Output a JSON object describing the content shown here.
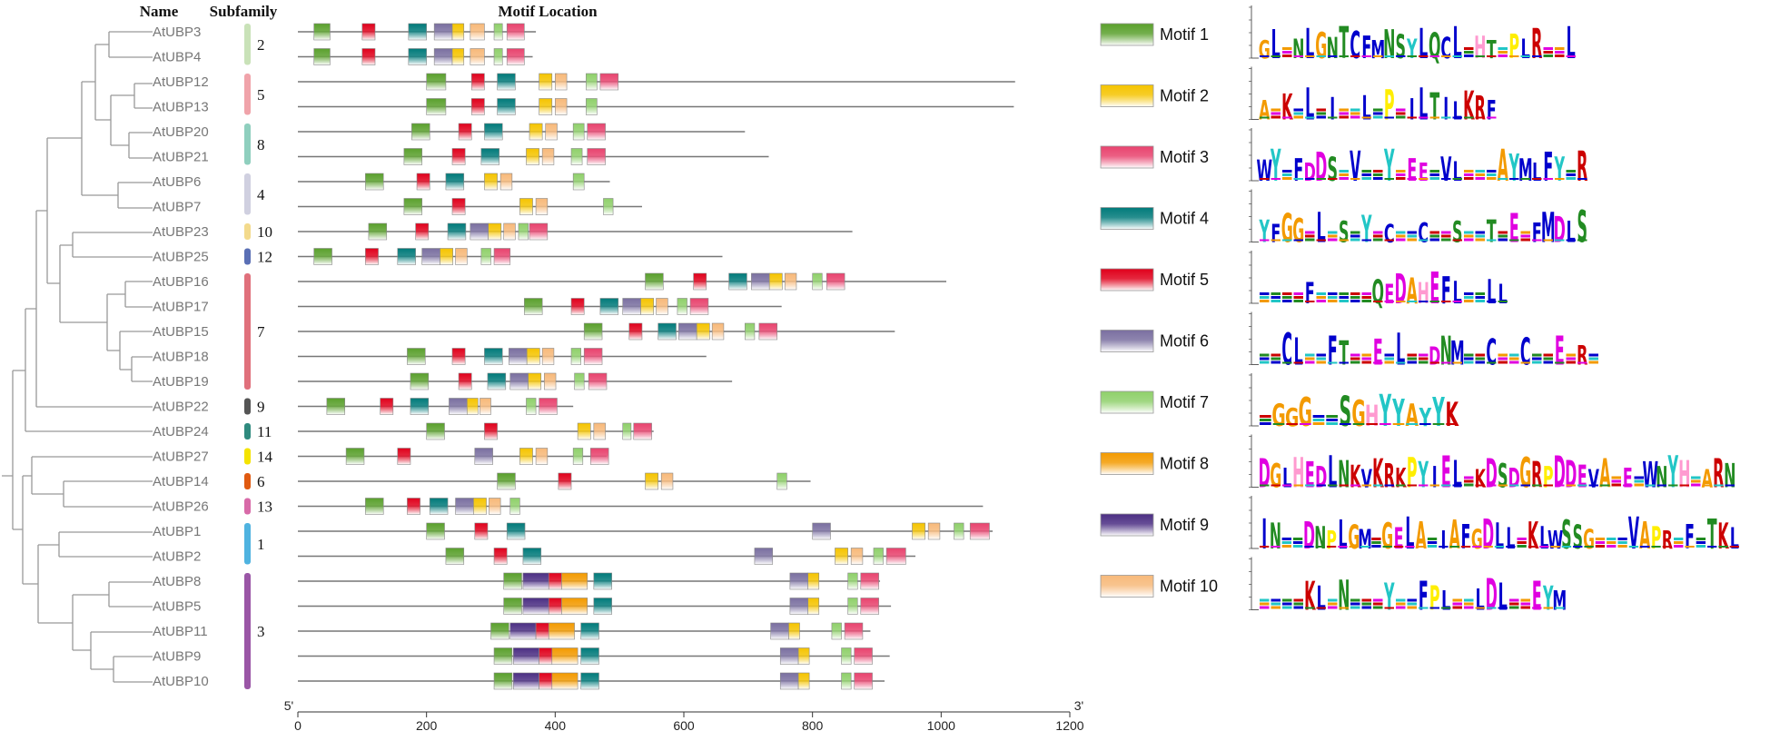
{
  "headers": {
    "name": "Name",
    "subfamily": "Subfamily",
    "motif_location": "Motif Location"
  },
  "axis": {
    "start": 0,
    "end": 1200,
    "ticks": [
      0,
      200,
      400,
      600,
      800,
      1000,
      1200
    ],
    "five_prime": "5'",
    "three_prime": "3'"
  },
  "motif_colors": {
    "1": [
      "#5aa02c",
      "#ffffff"
    ],
    "2": [
      "#f5c400",
      "#ffffff"
    ],
    "3": [
      "#e8436e",
      "#ffffff"
    ],
    "4": [
      "#007a7a",
      "#ffffff"
    ],
    "5": [
      "#e0001b",
      "#ffffff"
    ],
    "6": [
      "#7a6fa0",
      "#ffffff"
    ],
    "7": [
      "#8fd06a",
      "#ffffff"
    ],
    "8": [
      "#f39a00",
      "#ffffff"
    ],
    "9": [
      "#4b2e83",
      "#ffffff"
    ],
    "10": [
      "#f7b97a",
      "#ffffff"
    ]
  },
  "genes": [
    {
      "name": "AtUBP3",
      "length": 370,
      "motifs": [
        [
          1,
          25,
          50
        ],
        [
          5,
          100,
          120
        ],
        [
          4,
          172,
          200
        ],
        [
          6,
          212,
          240
        ],
        [
          2,
          240,
          258
        ],
        [
          10,
          268,
          290
        ],
        [
          7,
          305,
          318
        ],
        [
          3,
          325,
          352
        ]
      ]
    },
    {
      "name": "AtUBP4",
      "length": 365,
      "motifs": [
        [
          1,
          25,
          50
        ],
        [
          5,
          100,
          120
        ],
        [
          4,
          172,
          200
        ],
        [
          6,
          212,
          240
        ],
        [
          2,
          240,
          258
        ],
        [
          10,
          268,
          290
        ],
        [
          7,
          305,
          318
        ],
        [
          3,
          325,
          352
        ]
      ]
    },
    {
      "name": "AtUBP12",
      "length": 1115,
      "motifs": [
        [
          1,
          200,
          230
        ],
        [
          5,
          270,
          290
        ],
        [
          4,
          310,
          338
        ],
        [
          2,
          375,
          395
        ],
        [
          10,
          400,
          418
        ],
        [
          7,
          448,
          465
        ],
        [
          3,
          470,
          498
        ]
      ]
    },
    {
      "name": "AtUBP13",
      "length": 1113,
      "motifs": [
        [
          1,
          200,
          230
        ],
        [
          5,
          270,
          290
        ],
        [
          4,
          310,
          338
        ],
        [
          2,
          375,
          395
        ],
        [
          10,
          400,
          418
        ],
        [
          7,
          448,
          465
        ]
      ]
    },
    {
      "name": "AtUBP20",
      "length": 695,
      "motifs": [
        [
          1,
          177,
          205
        ],
        [
          5,
          250,
          270
        ],
        [
          4,
          290,
          318
        ],
        [
          2,
          360,
          380
        ],
        [
          10,
          385,
          403
        ],
        [
          7,
          428,
          445
        ],
        [
          3,
          450,
          478
        ]
      ]
    },
    {
      "name": "AtUBP21",
      "length": 732,
      "motifs": [
        [
          1,
          165,
          193
        ],
        [
          5,
          240,
          260
        ],
        [
          4,
          285,
          313
        ],
        [
          2,
          355,
          375
        ],
        [
          10,
          380,
          398
        ],
        [
          7,
          425,
          442
        ],
        [
          3,
          450,
          478
        ]
      ]
    },
    {
      "name": "AtUBP6",
      "length": 485,
      "motifs": [
        [
          1,
          105,
          133
        ],
        [
          5,
          185,
          205
        ],
        [
          4,
          230,
          258
        ],
        [
          2,
          290,
          310
        ],
        [
          10,
          315,
          333
        ],
        [
          7,
          428,
          445
        ]
      ]
    },
    {
      "name": "AtUBP7",
      "length": 535,
      "motifs": [
        [
          1,
          165,
          193
        ],
        [
          5,
          240,
          260
        ],
        [
          2,
          345,
          365
        ],
        [
          10,
          370,
          388
        ],
        [
          7,
          475,
          490
        ]
      ]
    },
    {
      "name": "AtUBP23",
      "length": 862,
      "motifs": [
        [
          1,
          110,
          138
        ],
        [
          5,
          183,
          203
        ],
        [
          4,
          233,
          261
        ],
        [
          6,
          268,
          296
        ],
        [
          2,
          296,
          316
        ],
        [
          10,
          320,
          338
        ],
        [
          7,
          343,
          358
        ],
        [
          3,
          360,
          388
        ]
      ]
    },
    {
      "name": "AtUBP25",
      "length": 660,
      "motifs": [
        [
          1,
          25,
          53
        ],
        [
          5,
          105,
          125
        ],
        [
          4,
          155,
          183
        ],
        [
          6,
          193,
          221
        ],
        [
          2,
          221,
          241
        ],
        [
          10,
          245,
          263
        ],
        [
          7,
          285,
          300
        ],
        [
          3,
          305,
          330
        ]
      ]
    },
    {
      "name": "AtUBP16",
      "length": 1008,
      "motifs": [
        [
          1,
          540,
          568
        ],
        [
          5,
          615,
          635
        ],
        [
          4,
          670,
          698
        ],
        [
          6,
          705,
          733
        ],
        [
          2,
          733,
          753
        ],
        [
          10,
          757,
          775
        ],
        [
          7,
          800,
          815
        ],
        [
          3,
          822,
          850
        ]
      ]
    },
    {
      "name": "AtUBP17",
      "length": 752,
      "motifs": [
        [
          1,
          352,
          380
        ],
        [
          5,
          425,
          445
        ],
        [
          4,
          470,
          498
        ],
        [
          6,
          505,
          533
        ],
        [
          2,
          533,
          553
        ],
        [
          10,
          557,
          575
        ],
        [
          7,
          590,
          605
        ],
        [
          3,
          610,
          638
        ]
      ]
    },
    {
      "name": "AtUBP15",
      "length": 928,
      "motifs": [
        [
          1,
          445,
          473
        ],
        [
          5,
          515,
          535
        ],
        [
          4,
          560,
          588
        ],
        [
          6,
          592,
          620
        ],
        [
          2,
          620,
          640
        ],
        [
          10,
          644,
          662
        ],
        [
          7,
          695,
          710
        ],
        [
          3,
          717,
          745
        ]
      ]
    },
    {
      "name": "AtUBP18",
      "length": 635,
      "motifs": [
        [
          1,
          170,
          198
        ],
        [
          5,
          240,
          260
        ],
        [
          4,
          290,
          318
        ],
        [
          6,
          328,
          356
        ],
        [
          2,
          356,
          376
        ],
        [
          10,
          380,
          398
        ],
        [
          7,
          425,
          440
        ],
        [
          3,
          445,
          473
        ]
      ]
    },
    {
      "name": "AtUBP19",
      "length": 675,
      "motifs": [
        [
          1,
          175,
          203
        ],
        [
          5,
          250,
          270
        ],
        [
          4,
          295,
          323
        ],
        [
          6,
          330,
          358
        ],
        [
          2,
          358,
          378
        ],
        [
          10,
          383,
          401
        ],
        [
          7,
          430,
          445
        ],
        [
          3,
          452,
          480
        ]
      ]
    },
    {
      "name": "AtUBP22",
      "length": 428,
      "motifs": [
        [
          1,
          45,
          73
        ],
        [
          5,
          128,
          148
        ],
        [
          4,
          175,
          203
        ],
        [
          6,
          235,
          263
        ],
        [
          2,
          263,
          280
        ],
        [
          10,
          283,
          300
        ],
        [
          7,
          355,
          370
        ],
        [
          3,
          375,
          403
        ]
      ]
    },
    {
      "name": "AtUBP24",
      "length": 553,
      "motifs": [
        [
          1,
          200,
          228
        ],
        [
          5,
          290,
          310
        ],
        [
          2,
          435,
          455
        ],
        [
          10,
          460,
          478
        ],
        [
          7,
          505,
          518
        ],
        [
          3,
          522,
          550
        ]
      ]
    },
    {
      "name": "AtUBP27",
      "length": 480,
      "motifs": [
        [
          1,
          75,
          103
        ],
        [
          5,
          155,
          175
        ],
        [
          6,
          275,
          303
        ],
        [
          2,
          345,
          365
        ],
        [
          10,
          370,
          388
        ],
        [
          7,
          428,
          443
        ],
        [
          3,
          455,
          483
        ]
      ]
    },
    {
      "name": "AtUBP14",
      "length": 797,
      "motifs": [
        [
          1,
          310,
          338
        ],
        [
          5,
          405,
          425
        ],
        [
          2,
          540,
          560
        ],
        [
          10,
          565,
          583
        ],
        [
          7,
          745,
          760
        ]
      ]
    },
    {
      "name": "AtUBP26",
      "length": 1065,
      "motifs": [
        [
          1,
          105,
          133
        ],
        [
          5,
          170,
          190
        ],
        [
          4,
          205,
          233
        ],
        [
          6,
          245,
          273
        ],
        [
          2,
          273,
          293
        ],
        [
          10,
          297,
          315
        ],
        [
          7,
          330,
          345
        ]
      ]
    },
    {
      "name": "AtUBP1",
      "length": 1080,
      "motifs": [
        [
          1,
          200,
          228
        ],
        [
          5,
          275,
          295
        ],
        [
          4,
          325,
          353
        ],
        [
          6,
          800,
          828
        ],
        [
          2,
          955,
          975
        ],
        [
          10,
          980,
          998
        ],
        [
          7,
          1020,
          1035
        ],
        [
          3,
          1045,
          1075
        ]
      ]
    },
    {
      "name": "AtUBP2",
      "length": 960,
      "motifs": [
        [
          1,
          230,
          258
        ],
        [
          5,
          305,
          325
        ],
        [
          4,
          350,
          378
        ],
        [
          6,
          710,
          738
        ],
        [
          2,
          835,
          855
        ],
        [
          10,
          860,
          878
        ],
        [
          7,
          895,
          910
        ],
        [
          3,
          915,
          945
        ]
      ]
    },
    {
      "name": "AtUBP8",
      "length": 905,
      "motifs": [
        [
          1,
          320,
          348
        ],
        [
          9,
          350,
          390
        ],
        [
          5,
          390,
          410
        ],
        [
          8,
          410,
          450
        ],
        [
          4,
          460,
          488
        ],
        [
          6,
          765,
          793
        ],
        [
          2,
          793,
          810
        ],
        [
          7,
          855,
          870
        ],
        [
          3,
          875,
          903
        ]
      ]
    },
    {
      "name": "AtUBP5",
      "length": 922,
      "motifs": [
        [
          1,
          320,
          348
        ],
        [
          9,
          350,
          390
        ],
        [
          5,
          390,
          410
        ],
        [
          8,
          410,
          450
        ],
        [
          4,
          460,
          488
        ],
        [
          6,
          765,
          793
        ],
        [
          2,
          793,
          810
        ],
        [
          7,
          855,
          870
        ],
        [
          3,
          875,
          903
        ]
      ]
    },
    {
      "name": "AtUBP11",
      "length": 890,
      "motifs": [
        [
          1,
          300,
          328
        ],
        [
          9,
          330,
          370
        ],
        [
          5,
          370,
          390
        ],
        [
          8,
          390,
          430
        ],
        [
          4,
          440,
          468
        ],
        [
          6,
          735,
          763
        ],
        [
          2,
          763,
          780
        ],
        [
          7,
          830,
          845
        ],
        [
          3,
          850,
          878
        ]
      ]
    },
    {
      "name": "AtUBP9",
      "length": 920,
      "motifs": [
        [
          1,
          305,
          333
        ],
        [
          9,
          335,
          375
        ],
        [
          5,
          375,
          395
        ],
        [
          8,
          395,
          435
        ],
        [
          4,
          440,
          468
        ],
        [
          6,
          750,
          778
        ],
        [
          2,
          778,
          795
        ],
        [
          7,
          845,
          860
        ],
        [
          3,
          865,
          893
        ]
      ]
    },
    {
      "name": "AtUBP10",
      "length": 912,
      "motifs": [
        [
          1,
          305,
          333
        ],
        [
          9,
          335,
          375
        ],
        [
          5,
          375,
          395
        ],
        [
          8,
          395,
          435
        ],
        [
          4,
          440,
          468
        ],
        [
          6,
          750,
          778
        ],
        [
          2,
          778,
          795
        ],
        [
          7,
          845,
          860
        ],
        [
          3,
          865,
          893
        ]
      ]
    }
  ],
  "subfamilies": [
    {
      "label": "2",
      "color": "#c9e2b8",
      "first": 0,
      "last": 1
    },
    {
      "label": "5",
      "color": "#f0a3aa",
      "first": 2,
      "last": 3
    },
    {
      "label": "8",
      "color": "#8fcfbe",
      "first": 4,
      "last": 5
    },
    {
      "label": "4",
      "color": "#d0d0e0",
      "first": 6,
      "last": 7
    },
    {
      "label": "10",
      "color": "#f3da8c",
      "first": 8,
      "last": 8
    },
    {
      "label": "12",
      "color": "#5a6fb5",
      "first": 9,
      "last": 9
    },
    {
      "label": "7",
      "color": "#e0707c",
      "first": 10,
      "last": 14
    },
    {
      "label": "9",
      "color": "#555555",
      "first": 15,
      "last": 15
    },
    {
      "label": "11",
      "color": "#2f8a7e",
      "first": 16,
      "last": 16
    },
    {
      "label": "14",
      "color": "#f4e300",
      "first": 17,
      "last": 17
    },
    {
      "label": "6",
      "color": "#e05a10",
      "first": 18,
      "last": 18
    },
    {
      "label": "13",
      "color": "#d86aa8",
      "first": 19,
      "last": 19
    },
    {
      "label": "1",
      "color": "#4fb3e0",
      "first": 20,
      "last": 21
    },
    {
      "label": "3",
      "color": "#9a56a6",
      "first": 22,
      "last": 26
    }
  ],
  "legend": [
    {
      "id": 1,
      "label": "Motif 1",
      "logo": "GL.NLGNTCFMNSYLQCL.HT.PLR..L"
    },
    {
      "id": 2,
      "label": "Motif 2",
      "logo": "A.K.L.I..L.P.ILTILKRF"
    },
    {
      "id": 3,
      "label": "Motif 3",
      "logo": "WY.FDDS.V..Y.EE.VL...AYMLFY.R"
    },
    {
      "id": 4,
      "label": "Motif 4",
      "logo": "YFGG.L.S.Y.C..C..S..T.E.FMDLS"
    },
    {
      "id": 5,
      "label": "Motif 5",
      "logo": "....F.....QEDAHEFL..LL"
    },
    {
      "id": 6,
      "label": "Motif 6",
      "logo": "..CL..FT..E.L..DNM..C..C..E.R."
    },
    {
      "id": 7,
      "label": "Motif 7",
      "logo": ".GGG..SGHYYAYYK"
    },
    {
      "id": 8,
      "label": "Motif 8",
      "logo": "DGLHEDLNKVKRKPYIEL.KDSDGRPDDEVA.E.WNYH.ARN"
    },
    {
      "id": 9,
      "label": "Motif 9",
      "logo": "IN..DNPLGM.GELA.IAFGDLL.KLWSSG...VAPR.F.TKL"
    },
    {
      "id": 10,
      "label": "Motif 10",
      "logo": "....KL.N...Y..FPL..LDL..EYM"
    }
  ]
}
